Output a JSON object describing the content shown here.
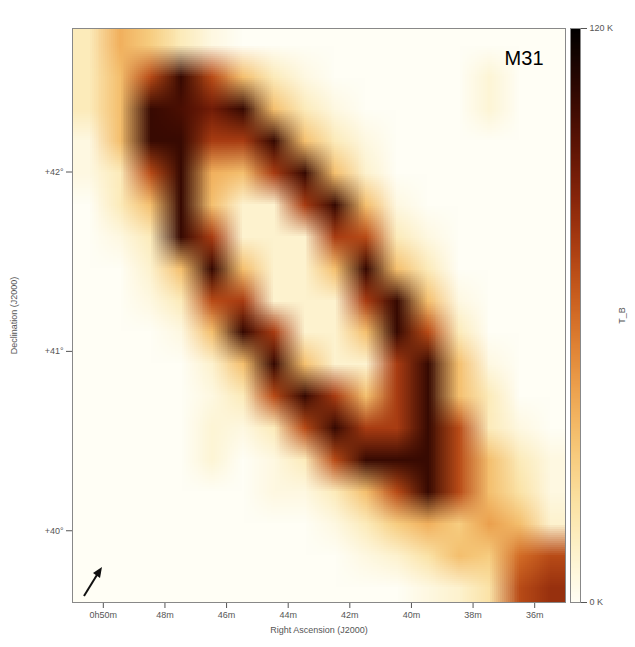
{
  "chart_data": {
    "type": "heatmap",
    "title": "M31",
    "x_label": "Right Ascension (J2000)",
    "y_label": "Declination (J2000)",
    "xlim": [
      51,
      35
    ],
    "ylim": [
      39.6,
      42.8
    ],
    "xticks": [
      {
        "value": 50,
        "label": "0h50m"
      },
      {
        "value": 48,
        "label": "48m"
      },
      {
        "value": 46,
        "label": "46m"
      },
      {
        "value": 44,
        "label": "44m"
      },
      {
        "value": 42,
        "label": "42m"
      },
      {
        "value": 40,
        "label": "40m"
      },
      {
        "value": 38,
        "label": "38m"
      },
      {
        "value": 36,
        "label": "36m"
      }
    ],
    "yticks": [
      {
        "value": 40,
        "label": "+40°"
      },
      {
        "value": 41,
        "label": "+41°"
      },
      {
        "value": 42,
        "label": "+42°"
      }
    ],
    "grid": false,
    "cells": [
      [
        15,
        40,
        30,
        15,
        5,
        0,
        0,
        0,
        0,
        0,
        0,
        0,
        0,
        0,
        0,
        0
      ],
      [
        15,
        35,
        70,
        105,
        70,
        35,
        15,
        5,
        0,
        0,
        0,
        0,
        0,
        8,
        0,
        0
      ],
      [
        15,
        35,
        105,
        100,
        90,
        105,
        35,
        15,
        5,
        0,
        0,
        0,
        0,
        8,
        0,
        0
      ],
      [
        5,
        35,
        105,
        105,
        75,
        75,
        105,
        35,
        15,
        5,
        0,
        0,
        0,
        0,
        0,
        0
      ],
      [
        5,
        15,
        70,
        105,
        40,
        35,
        75,
        105,
        35,
        10,
        0,
        0,
        0,
        0,
        0,
        0
      ],
      [
        0,
        15,
        35,
        105,
        35,
        10,
        10,
        75,
        105,
        35,
        5,
        0,
        0,
        0,
        0,
        0
      ],
      [
        0,
        5,
        15,
        105,
        75,
        10,
        10,
        10,
        75,
        70,
        15,
        5,
        0,
        0,
        0,
        0
      ],
      [
        0,
        0,
        10,
        35,
        105,
        35,
        10,
        10,
        35,
        105,
        35,
        15,
        0,
        0,
        0,
        0
      ],
      [
        0,
        0,
        5,
        15,
        70,
        75,
        10,
        10,
        10,
        75,
        105,
        35,
        5,
        0,
        0,
        0
      ],
      [
        0,
        0,
        0,
        5,
        35,
        105,
        75,
        10,
        10,
        35,
        105,
        70,
        15,
        0,
        0,
        0
      ],
      [
        0,
        0,
        0,
        0,
        10,
        35,
        105,
        35,
        10,
        10,
        75,
        105,
        35,
        5,
        0,
        0
      ],
      [
        0,
        0,
        0,
        0,
        5,
        15,
        70,
        105,
        75,
        35,
        75,
        105,
        35,
        15,
        0,
        0
      ],
      [
        0,
        0,
        0,
        0,
        8,
        5,
        15,
        70,
        105,
        75,
        75,
        105,
        70,
        15,
        5,
        0
      ],
      [
        0,
        0,
        0,
        0,
        8,
        0,
        5,
        15,
        70,
        105,
        105,
        105,
        70,
        35,
        15,
        5
      ],
      [
        0,
        0,
        0,
        0,
        0,
        0,
        5,
        5,
        15,
        35,
        70,
        105,
        70,
        35,
        20,
        5
      ],
      [
        0,
        0,
        0,
        0,
        0,
        0,
        0,
        0,
        5,
        15,
        30,
        40,
        30,
        45,
        35,
        10
      ],
      [
        0,
        0,
        0,
        0,
        0,
        0,
        0,
        0,
        0,
        5,
        10,
        20,
        35,
        30,
        60,
        70
      ],
      [
        0,
        0,
        0,
        0,
        0,
        0,
        0,
        0,
        0,
        0,
        0,
        5,
        10,
        20,
        70,
        80
      ]
    ],
    "colorbar": {
      "range": [
        0,
        120
      ],
      "ticks": [
        {
          "value": 0,
          "label": "0 K"
        },
        {
          "value": 120,
          "label": "120 K"
        }
      ],
      "label": "T_B"
    }
  }
}
